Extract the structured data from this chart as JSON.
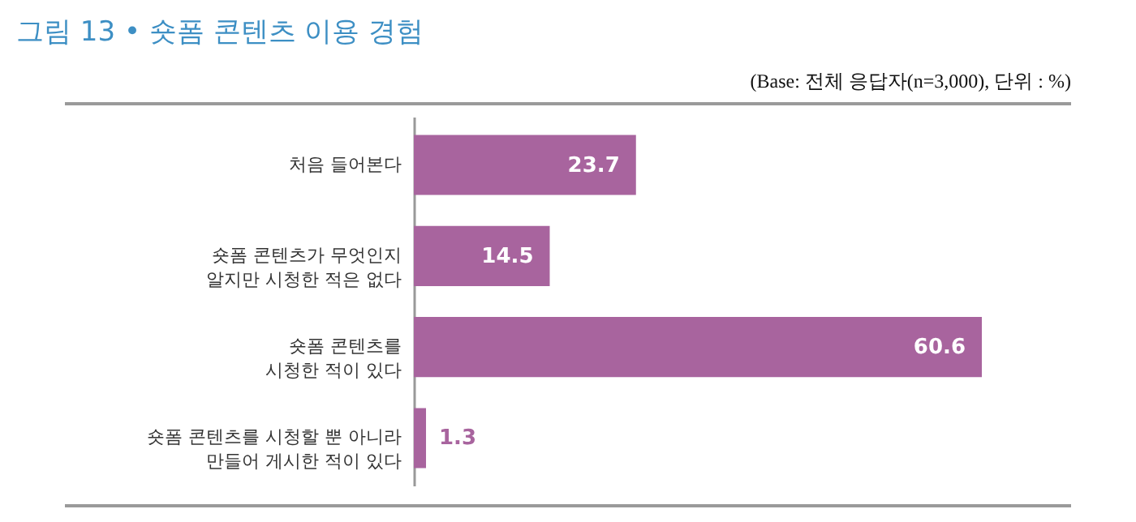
{
  "chart_data": {
    "type": "bar",
    "orientation": "horizontal",
    "title": "그림 13 • 숏폼 콘텐츠 이용 경험",
    "subtitle": "(Base: 전체 응답자(n=3,000), 단위 : %)",
    "categories": [
      "처음 들어본다",
      "숏폼 콘텐츠가 무엇인지 알지만 시청한 적은 없다",
      "숏폼 콘텐츠를 시청한 적이 있다",
      "숏폼 콘텐츠를 시청할 뿐 아니라 만들어 게시한 적이 있다"
    ],
    "values": [
      23.7,
      14.5,
      60.6,
      1.3
    ],
    "color": "#a8649e",
    "data_labels": true
  }
}
